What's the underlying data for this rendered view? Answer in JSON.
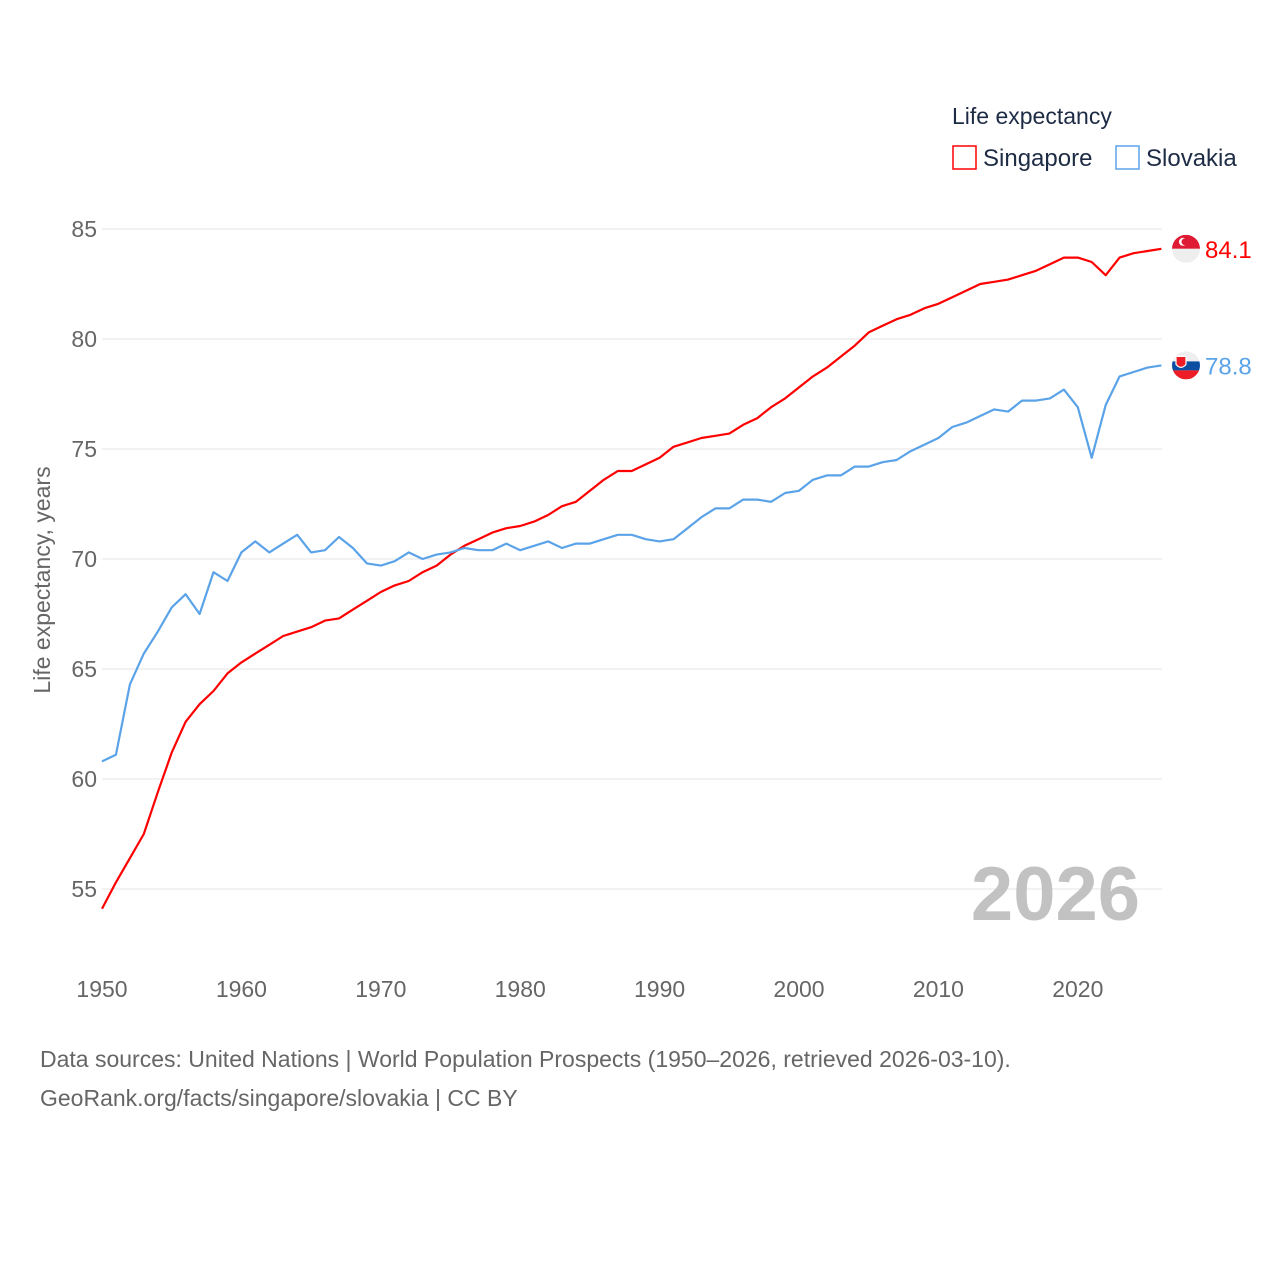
{
  "chart_data": {
    "type": "line",
    "title": "",
    "xlabel": "",
    "ylabel": "Life expectancy, years",
    "xlim": [
      1950,
      2026
    ],
    "ylim": [
      53.5,
      85
    ],
    "xticks": [
      1950,
      1960,
      1970,
      1980,
      1990,
      2000,
      2010,
      2020
    ],
    "yticks": [
      55,
      60,
      65,
      70,
      75,
      80,
      85
    ],
    "grid": true,
    "legend": {
      "title": "Life expectancy",
      "placement": "top-right"
    },
    "year_label": "2026",
    "x": [
      1950,
      1951,
      1952,
      1953,
      1954,
      1955,
      1956,
      1957,
      1958,
      1959,
      1960,
      1961,
      1962,
      1963,
      1964,
      1965,
      1966,
      1967,
      1968,
      1969,
      1970,
      1971,
      1972,
      1973,
      1974,
      1975,
      1976,
      1977,
      1978,
      1979,
      1980,
      1981,
      1982,
      1983,
      1984,
      1985,
      1986,
      1987,
      1988,
      1989,
      1990,
      1991,
      1992,
      1993,
      1994,
      1995,
      1996,
      1997,
      1998,
      1999,
      2000,
      2001,
      2002,
      2003,
      2004,
      2005,
      2006,
      2007,
      2008,
      2009,
      2010,
      2011,
      2012,
      2013,
      2014,
      2015,
      2016,
      2017,
      2018,
      2019,
      2020,
      2021,
      2022,
      2023,
      2024,
      2025,
      2026
    ],
    "series": [
      {
        "name": "Singapore",
        "color": "#ff0000",
        "end_label": "84.1",
        "values": [
          54.1,
          55.3,
          56.4,
          57.5,
          59.4,
          61.2,
          62.6,
          63.4,
          64.0,
          64.8,
          65.3,
          65.7,
          66.1,
          66.5,
          66.7,
          66.9,
          67.2,
          67.3,
          67.7,
          68.1,
          68.5,
          68.8,
          69.0,
          69.4,
          69.7,
          70.2,
          70.6,
          70.9,
          71.2,
          71.4,
          71.5,
          71.7,
          72.0,
          72.4,
          72.6,
          73.1,
          73.6,
          74.0,
          74.0,
          74.3,
          74.6,
          75.1,
          75.3,
          75.5,
          75.6,
          75.7,
          76.1,
          76.4,
          76.9,
          77.3,
          77.8,
          78.3,
          78.7,
          79.2,
          79.7,
          80.3,
          80.6,
          80.9,
          81.1,
          81.4,
          81.6,
          81.9,
          82.2,
          82.5,
          82.6,
          82.7,
          82.9,
          83.1,
          83.4,
          83.7,
          83.7,
          83.5,
          82.9,
          83.7,
          83.9,
          84.0,
          84.1
        ]
      },
      {
        "name": "Slovakia",
        "color": "#5ba3e8",
        "end_label": "78.8",
        "values": [
          60.8,
          61.1,
          64.3,
          65.7,
          66.7,
          67.8,
          68.4,
          67.5,
          69.4,
          69.0,
          70.3,
          70.8,
          70.3,
          70.7,
          71.1,
          70.3,
          70.4,
          71.0,
          70.5,
          69.8,
          69.7,
          69.9,
          70.3,
          70.0,
          70.2,
          70.3,
          70.5,
          70.4,
          70.4,
          70.7,
          70.4,
          70.6,
          70.8,
          70.5,
          70.7,
          70.7,
          70.9,
          71.1,
          71.1,
          70.9,
          70.8,
          70.9,
          71.4,
          71.9,
          72.3,
          72.3,
          72.7,
          72.7,
          72.6,
          73.0,
          73.1,
          73.6,
          73.8,
          73.8,
          74.2,
          74.2,
          74.4,
          74.5,
          74.9,
          75.2,
          75.5,
          76.0,
          76.2,
          76.5,
          76.8,
          76.7,
          77.2,
          77.2,
          77.3,
          77.7,
          76.9,
          74.6,
          77.0,
          78.3,
          78.5,
          78.7,
          78.8
        ]
      }
    ]
  },
  "footer": {
    "source": "Data sources: United Nations | World Population Prospects (1950–2026, retrieved 2026-03-10).",
    "credit": "GeoRank.org/facts/singapore/slovakia | CC BY"
  }
}
